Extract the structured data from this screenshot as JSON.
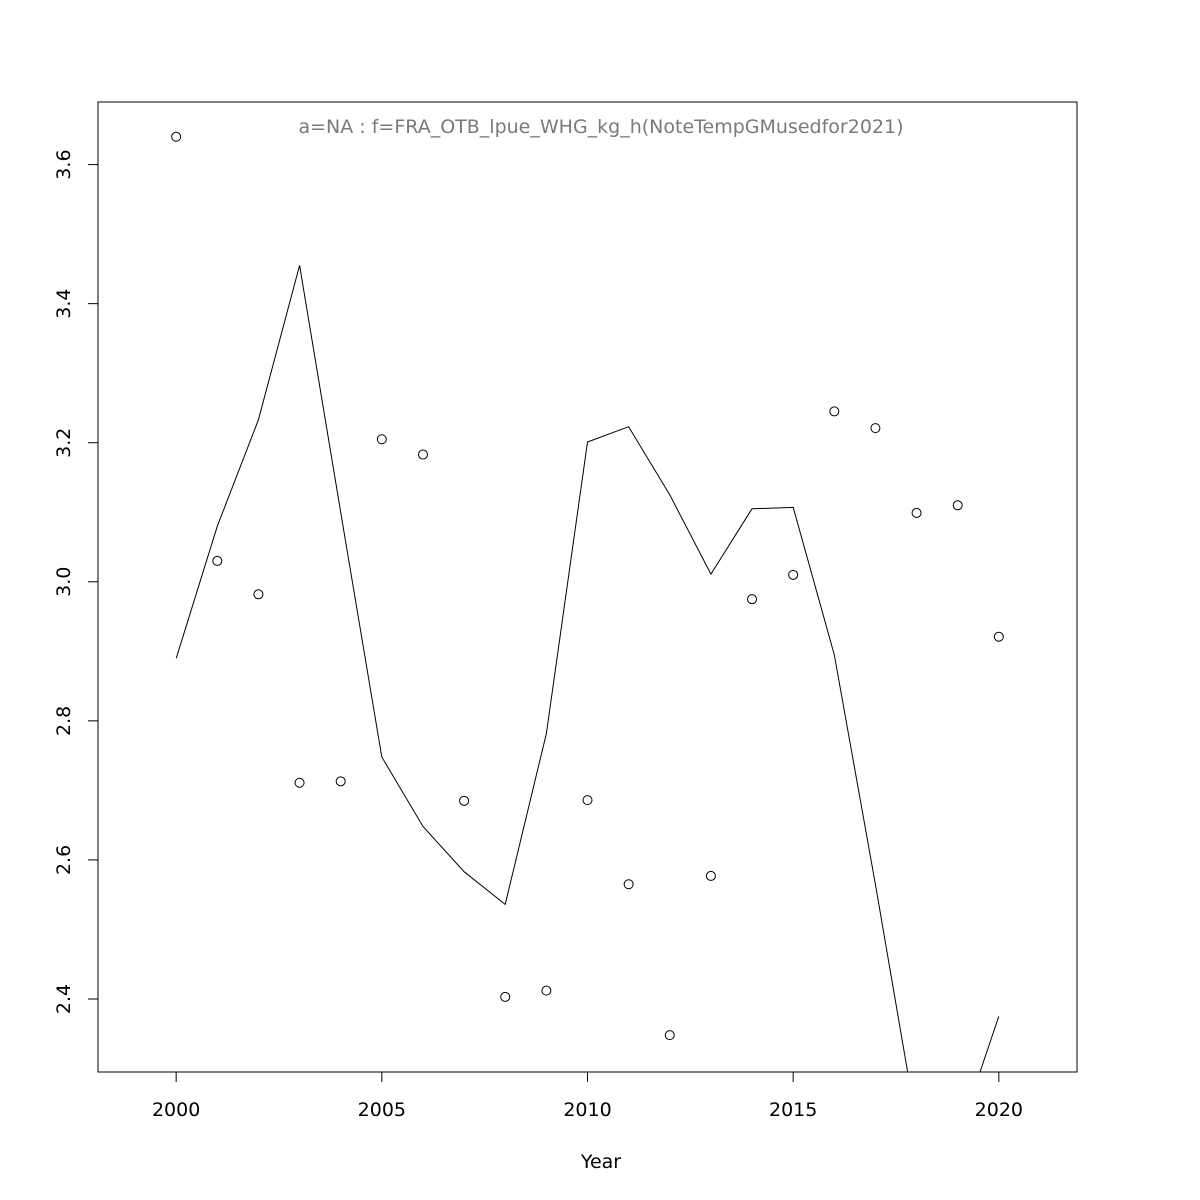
{
  "chart_data": {
    "type": "scatter",
    "title": "a=NA  :  f=FRA_OTB_lpue_WHG_kg_h(NoteTempGMusedfor2021)",
    "xlabel": "Year",
    "ylabel": "",
    "xlim": [
      1998.1,
      2021.9
    ],
    "ylim": [
      2.295,
      3.69
    ],
    "xticks": [
      2000,
      2005,
      2010,
      2015,
      2020
    ],
    "yticks": [
      2.4,
      2.6,
      2.8,
      3.0,
      3.2,
      3.4,
      3.6
    ],
    "xtick_labels": [
      "2000",
      "2005",
      "2010",
      "2015",
      "2020"
    ],
    "ytick_labels": [
      "2.4",
      "2.6",
      "2.8",
      "3.0",
      "3.2",
      "3.4",
      "3.6"
    ],
    "grid": false,
    "legend": "none",
    "series": [
      {
        "kind": "points",
        "marker": "open-circle",
        "x": [
          2000,
          2001,
          2002,
          2003,
          2004,
          2005,
          2006,
          2007,
          2008,
          2009,
          2010,
          2011,
          2012,
          2013,
          2014,
          2015,
          2016,
          2017,
          2018,
          2019,
          2020
        ],
        "y": [
          3.64,
          3.03,
          2.982,
          2.711,
          2.713,
          3.205,
          3.183,
          2.685,
          2.403,
          2.412,
          2.686,
          2.565,
          2.348,
          2.577,
          2.975,
          3.01,
          3.245,
          3.221,
          3.099,
          3.11,
          2.921
        ]
      },
      {
        "kind": "line",
        "x": [
          2000,
          2001,
          2002,
          2003,
          2004,
          2005,
          2006,
          2007,
          2008,
          2009,
          2010,
          2011,
          2012,
          2013,
          2014,
          2015,
          2016,
          2017,
          2018,
          2019,
          2020
        ],
        "y": [
          2.89,
          3.08,
          3.233,
          3.455,
          3.1,
          2.748,
          2.648,
          2.583,
          2.536,
          2.782,
          3.201,
          3.223,
          3.125,
          3.011,
          3.105,
          3.107,
          2.895,
          2.565,
          2.22,
          2.2,
          2.375
        ]
      }
    ]
  }
}
